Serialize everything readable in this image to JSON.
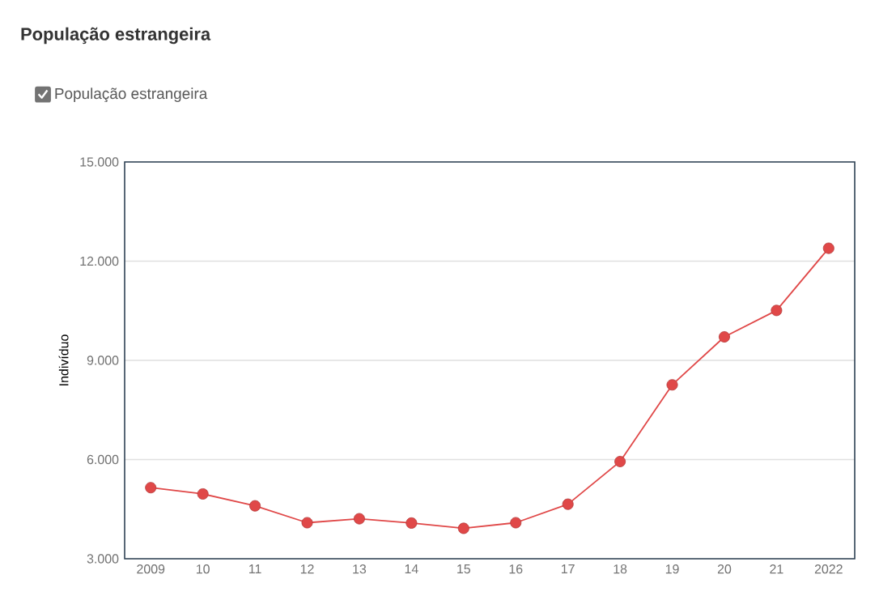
{
  "chart_data": {
    "type": "line",
    "title": "População estrangeira",
    "ylabel": "Indivíduo",
    "categories": [
      "2009",
      "10",
      "11",
      "12",
      "13",
      "14",
      "15",
      "16",
      "17",
      "18",
      "19",
      "20",
      "21",
      "2022"
    ],
    "series": [
      {
        "name": "População estrangeira",
        "color": "#e04848",
        "values": [
          5150,
          4960,
          4600,
          4090,
          4210,
          4080,
          3920,
          4090,
          4650,
          5940,
          8260,
          9710,
          10510,
          12390
        ]
      }
    ],
    "ylim": [
      3000,
      15000
    ],
    "yticks": [
      {
        "value": 3000,
        "label": "3.000"
      },
      {
        "value": 6000,
        "label": "6.000"
      },
      {
        "value": 9000,
        "label": "9.000"
      },
      {
        "value": 12000,
        "label": "12.000"
      },
      {
        "value": 15000,
        "label": "15.000"
      }
    ],
    "grid": "y",
    "legend": "top left",
    "marker": "circle",
    "line_style": "solid"
  }
}
